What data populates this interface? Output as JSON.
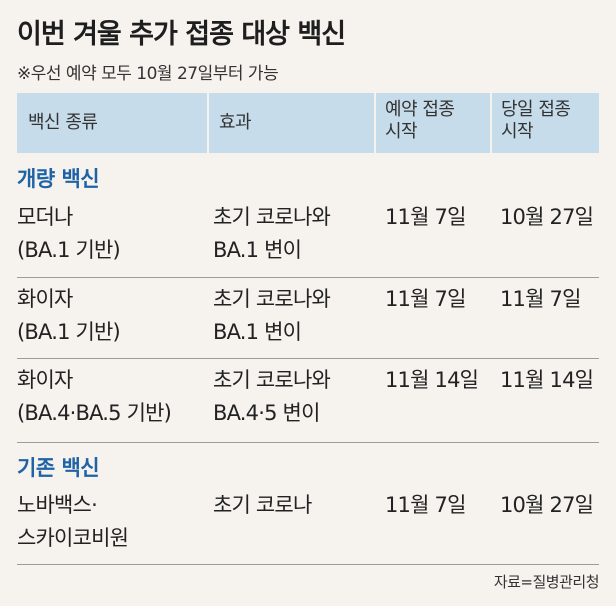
{
  "title": "이번 겨울 추가 접종 대상 백신",
  "subtitle": "※우선 예약 모두 10월 27일부터 가능",
  "header": {
    "col1": "백신 종류",
    "col2": "효과",
    "col3_line1": "예약 접종",
    "col3_line2": "시작",
    "col4_line1": "당일 접종",
    "col4_line2": "시작"
  },
  "groups": [
    {
      "title": "개량 백신",
      "rows": [
        {
          "vaccine": [
            "모더나",
            "(BA.1 기반)"
          ],
          "effect": [
            "초기 코로나와",
            "BA.1 변이"
          ],
          "reservation": "11월 7일",
          "same_day": "10월 27일"
        },
        {
          "vaccine": [
            "화이자",
            "(BA.1 기반)"
          ],
          "effect": [
            "초기 코로나와",
            "BA.1 변이"
          ],
          "reservation": "11월 7일",
          "same_day": "11월 7일"
        },
        {
          "vaccine": [
            "화이자",
            "(BA.4·BA.5 기반)"
          ],
          "effect": [
            "초기 코로나와",
            "BA.4·5 변이"
          ],
          "reservation": "11월 14일",
          "same_day": "11월 14일"
        }
      ]
    },
    {
      "title": "기존 백신",
      "rows": [
        {
          "vaccine": [
            "노바백스·",
            "스카이코비원"
          ],
          "effect": [
            "초기 코로나"
          ],
          "reservation": "11월 7일",
          "same_day": "10월 27일"
        }
      ]
    }
  ],
  "source": "자료=질병관리청"
}
